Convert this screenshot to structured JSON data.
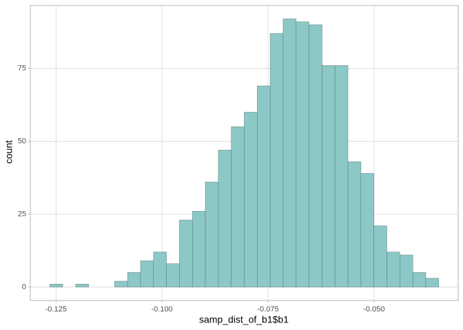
{
  "chart_data": {
    "type": "histogram",
    "x_label": "samp_dist_of_b1$b1",
    "y_label": "count",
    "bins": [
      -0.12646,
      -0.1234,
      -0.12035,
      -0.11729,
      -0.11423,
      -0.11118,
      -0.10812,
      -0.10506,
      -0.102,
      -0.09895,
      -0.09589,
      -0.09283,
      -0.08978,
      -0.08672,
      -0.08366,
      -0.08061,
      -0.07755,
      -0.07449,
      -0.07143,
      -0.06838,
      -0.06532,
      -0.06226,
      -0.05921,
      -0.05615,
      -0.05309,
      -0.05004,
      -0.04698,
      -0.04392,
      -0.04086,
      -0.03781,
      -0.03475
    ],
    "values": [
      1,
      0,
      1,
      0,
      0,
      2,
      5,
      9,
      12,
      8,
      23,
      26,
      36,
      47,
      55,
      60,
      69,
      87,
      92,
      91,
      90,
      76,
      76,
      43,
      39,
      21,
      12,
      11,
      5,
      3
    ],
    "color": "#8cc8c6",
    "edge_color": "#4d6b6a",
    "xlim": [
      -0.13105,
      -0.03016
    ],
    "ylim": [
      -4.6,
      96.6
    ],
    "xticks": [
      -0.125,
      {
        "value": -0.1,
        "label": "-0.100"
      },
      -0.075,
      {
        "value": -0.05,
        "label": "-0.050"
      }
    ],
    "yticks": [
      0,
      25,
      50,
      75
    ],
    "grid": true
  }
}
